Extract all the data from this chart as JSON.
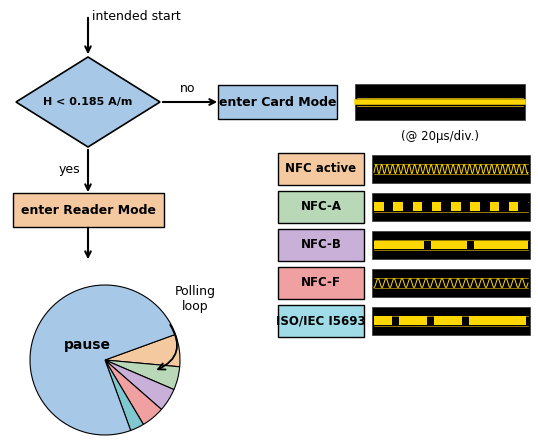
{
  "bg_color": "#ffffff",
  "diamond_text": "H < 0.185 A/m",
  "diamond_color": "#a8c8e8",
  "card_mode_text": "enter Card Mode",
  "card_mode_color": "#a8c8e8",
  "reader_mode_text": "enter Reader Mode",
  "reader_mode_color": "#f5c9a0",
  "start_text": "intended start",
  "yes_text": "yes",
  "no_text": "no",
  "pause_text": "pause",
  "polling_loop_text": "Polling\nloop",
  "pie_colors": [
    "#a8c8e8",
    "#f5c9a0",
    "#b8d8b8",
    "#c8b0d8",
    "#f0a0a0",
    "#80c8d0"
  ],
  "pie_sizes": [
    75,
    7,
    5,
    5,
    5,
    3
  ],
  "nfc_labels": [
    "NFC active",
    "NFC-A",
    "NFC-B",
    "NFC-F",
    "ISO/IEC I5693"
  ],
  "nfc_colors": [
    "#f5c9a0",
    "#b8d8b8",
    "#c8b0d8",
    "#f0a0a0",
    "#a0dce8"
  ],
  "time_label": "(@ 20μs/div.)",
  "signal_yellow": "#ffd700"
}
